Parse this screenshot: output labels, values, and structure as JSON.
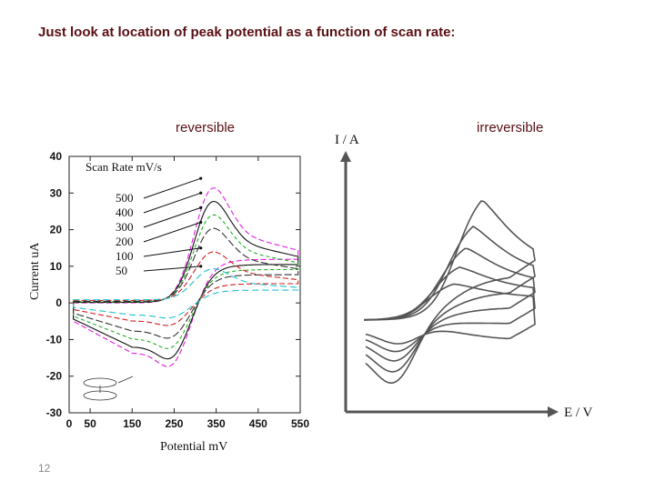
{
  "slide": {
    "title": "Just look at location of peak potential as a function of scan rate:",
    "page_number": "12"
  },
  "colors": {
    "title": "#5a0f14",
    "series": [
      "#e020e0",
      "#111111",
      "#20b020",
      "#333333",
      "#d02020",
      "#20c0d0"
    ]
  },
  "chart_data": [
    {
      "type": "line",
      "label": "reversible",
      "xlabel": "Potential mV",
      "ylabel": "Current uA",
      "xlim": [
        0,
        550
      ],
      "ylim": [
        -30,
        40
      ],
      "x_ticks": [
        "0",
        "50",
        "150",
        "250",
        "350",
        "450",
        "550"
      ],
      "x_tick_values": [
        0,
        50,
        150,
        250,
        350,
        450,
        550
      ],
      "y_ticks": [
        "40",
        "30",
        "20",
        "10",
        "0",
        "-10",
        "-20",
        "-30"
      ],
      "y_tick_values": [
        40,
        30,
        20,
        10,
        0,
        -10,
        -20,
        -30
      ],
      "legend_title": "Scan Rate mV/s",
      "series": [
        {
          "name": "500",
          "peak_anodic": [
            335,
            34
          ],
          "peak_cathodic": [
            265,
            -25
          ]
        },
        {
          "name": "400",
          "peak_anodic": [
            335,
            30
          ],
          "peak_cathodic": [
            265,
            -22
          ]
        },
        {
          "name": "300",
          "peak_anodic": [
            335,
            26
          ],
          "peak_cathodic": [
            265,
            -18
          ]
        },
        {
          "name": "200",
          "peak_anodic": [
            335,
            22
          ],
          "peak_cathodic": [
            265,
            -14
          ]
        },
        {
          "name": "100",
          "peak_anodic": [
            335,
            15
          ],
          "peak_cathodic": [
            265,
            -9
          ]
        },
        {
          "name": "50",
          "peak_anodic": [
            335,
            10
          ],
          "peak_cathodic": [
            265,
            -6
          ]
        }
      ]
    },
    {
      "type": "line",
      "label": "irreversible",
      "xlabel": "E / V",
      "ylabel": "I / A",
      "series": [
        {
          "peak_anodic_height": 1.0,
          "peak_cathodic_depth": 1.0
        },
        {
          "peak_anodic_height": 0.78,
          "peak_cathodic_depth": 0.82
        },
        {
          "peak_anodic_height": 0.6,
          "peak_cathodic_depth": 0.64
        },
        {
          "peak_anodic_height": 0.44,
          "peak_cathodic_depth": 0.48
        },
        {
          "peak_anodic_height": 0.3,
          "peak_cathodic_depth": 0.34
        }
      ]
    }
  ]
}
